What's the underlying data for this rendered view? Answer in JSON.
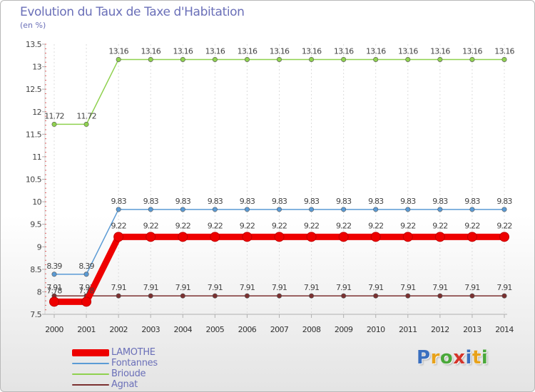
{
  "header": {
    "title": "Evolution du Taux de Taxe d'Habitation",
    "subtitle": "(en %)"
  },
  "brand": {
    "text": "Proxiti",
    "colors": [
      "#3a6fbf",
      "#e8a21a",
      "#4aa83a",
      "#d4342a",
      "#3a6fbf",
      "#e8a21a",
      "#4aa83a"
    ]
  },
  "chart_data": {
    "type": "line",
    "title": "Evolution du Taux de Taxe d'Habitation",
    "ylabel": "(en %)",
    "xlabel": "",
    "x": [
      "2000",
      "2001",
      "2002",
      "2003",
      "2004",
      "2005",
      "2006",
      "2007",
      "2008",
      "2009",
      "2010",
      "2011",
      "2012",
      "2013",
      "2014"
    ],
    "ylim": [
      7.5,
      13.5
    ],
    "yticks": [
      "7.5",
      "8",
      "8.5",
      "9",
      "9.5",
      "10",
      "10.5",
      "11",
      "11.5",
      "12",
      "12.5",
      "13",
      "13.5"
    ],
    "legend_position": "bottom-left",
    "series": [
      {
        "name": "Brioude",
        "color": "#8fd14f",
        "emphasis": false,
        "label_side": "above",
        "values": [
          11.72,
          11.72,
          13.16,
          13.16,
          13.16,
          13.16,
          13.16,
          13.16,
          13.16,
          13.16,
          13.16,
          13.16,
          13.16,
          13.16,
          13.16
        ],
        "labels": [
          "11.72",
          "11.72",
          "13.16",
          "13.16",
          "13.16",
          "13.16",
          "13.16",
          "13.16",
          "13.16",
          "13.16",
          "13.16",
          "13.16",
          "13.16",
          "13.16",
          "13.16"
        ]
      },
      {
        "name": "Fontannes",
        "color": "#5b9bd5",
        "emphasis": false,
        "label_side": "above",
        "values": [
          8.39,
          8.39,
          9.83,
          9.83,
          9.83,
          9.83,
          9.83,
          9.83,
          9.83,
          9.83,
          9.83,
          9.83,
          9.83,
          9.83,
          9.83
        ],
        "labels": [
          "8.39",
          "8.39",
          "9.83",
          "9.83",
          "9.83",
          "9.83",
          "9.83",
          "9.83",
          "9.83",
          "9.83",
          "9.83",
          "9.83",
          "9.83",
          "9.83",
          "9.83"
        ]
      },
      {
        "name": "Agnat",
        "color": "#7b3030",
        "emphasis": false,
        "label_side": "above",
        "values": [
          7.91,
          7.91,
          7.91,
          7.91,
          7.91,
          7.91,
          7.91,
          7.91,
          7.91,
          7.91,
          7.91,
          7.91,
          7.91,
          7.91,
          7.91
        ],
        "labels": [
          "7.91",
          "7.91",
          "7.91",
          "7.91",
          "7.91",
          "7.91",
          "7.91",
          "7.91",
          "7.91",
          "7.91",
          "7.91",
          "7.91",
          "7.91",
          "7.91",
          "7.91"
        ]
      },
      {
        "name": "LAMOTHE",
        "color": "#ee0000",
        "emphasis": true,
        "label_side": "above",
        "values": [
          7.78,
          7.78,
          9.22,
          9.22,
          9.22,
          9.22,
          9.22,
          9.22,
          9.22,
          9.22,
          9.22,
          9.22,
          9.22,
          9.22,
          9.22
        ],
        "labels": [
          "7.78",
          "7.78",
          "9.22",
          "9.22",
          "9.22",
          "9.22",
          "9.22",
          "9.22",
          "9.22",
          "9.22",
          "9.22",
          "9.22",
          "9.22",
          "9.22",
          "9.22"
        ]
      }
    ],
    "legend": [
      {
        "name": "LAMOTHE",
        "color": "#ee0000",
        "emphasis": true
      },
      {
        "name": "Fontannes",
        "color": "#5b9bd5",
        "emphasis": false
      },
      {
        "name": "Brioude",
        "color": "#8fd14f",
        "emphasis": false
      },
      {
        "name": "Agnat",
        "color": "#7b3030",
        "emphasis": false
      }
    ]
  }
}
